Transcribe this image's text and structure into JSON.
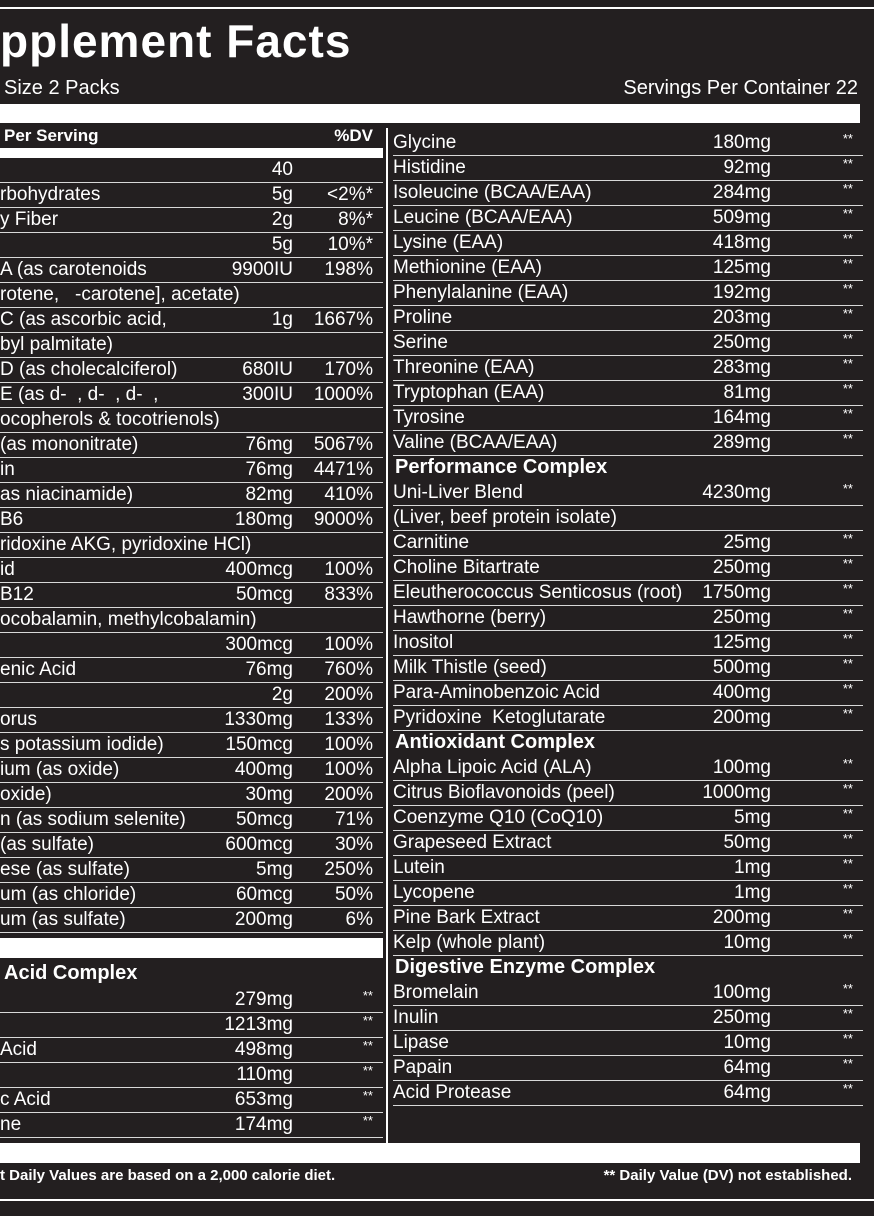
{
  "header": {
    "title": "pplement Facts",
    "serving_size": "Size 2 Packs",
    "servings_per_container": "Servings Per Container 22"
  },
  "left": {
    "header": {
      "label": "Per Serving",
      "dv": "%DV"
    },
    "rows": [
      {
        "amount": "40"
      },
      {
        "name": "rbohydrates",
        "amount": "5g",
        "dv": "<2%*"
      },
      {
        "name": "y Fiber",
        "amount": "2g",
        "dv": "8%*"
      },
      {
        "amount": "5g",
        "dv": "10%*"
      },
      {
        "name": "A (as carotenoids",
        "amount": "9900IU",
        "dv": "198%"
      },
      {
        "name": "rotene,   -carotene], acetate)"
      },
      {
        "name": "C (as ascorbic acid,",
        "amount": "1g",
        "dv": "1667%"
      },
      {
        "name": "byl palmitate)"
      },
      {
        "name": "D (as cholecalciferol)",
        "amount": "680IU",
        "dv": "170%"
      },
      {
        "name": "E (as d-  , d-  , d-  ,",
        "amount": "300IU",
        "dv": "1000%"
      },
      {
        "name": "ocopherols & tocotrienols)"
      },
      {
        "name": "(as mononitrate)",
        "amount": "76mg",
        "dv": "5067%"
      },
      {
        "name": "in",
        "amount": "76mg",
        "dv": "4471%"
      },
      {
        "name": "as niacinamide)",
        "amount": "82mg",
        "dv": "410%"
      },
      {
        "name": "B6",
        "amount": "180mg",
        "dv": "9000%"
      },
      {
        "name": "ridoxine AKG, pyridoxine HCl)"
      },
      {
        "name": "id",
        "amount": "400mcg",
        "dv": "100%"
      },
      {
        "name": "B12",
        "amount": "50mcg",
        "dv": "833%"
      },
      {
        "name": "ocobalamin, methylcobalamin)"
      },
      {
        "amount": "300mcg",
        "dv": "100%"
      },
      {
        "name": "enic Acid",
        "amount": "76mg",
        "dv": "760%"
      },
      {
        "amount": "2g",
        "dv": "200%"
      },
      {
        "name": "orus",
        "amount": "1330mg",
        "dv": "133%"
      },
      {
        "name": "s potassium iodide)",
        "amount": "150mcg",
        "dv": "100%"
      },
      {
        "name": "ium (as oxide)",
        "amount": "400mg",
        "dv": "100%"
      },
      {
        "name": "oxide)",
        "amount": "30mg",
        "dv": "200%"
      },
      {
        "name": "n (as sodium selenite)",
        "amount": "50mcg",
        "dv": "71%"
      },
      {
        "name": "(as sulfate)",
        "amount": "600mcg",
        "dv": "30%"
      },
      {
        "name": "ese (as sulfate)",
        "amount": "5mg",
        "dv": "250%"
      },
      {
        "name": "um (as chloride)",
        "amount": "60mcg",
        "dv": "50%"
      },
      {
        "name": "um (as sulfate)",
        "amount": "200mg",
        "dv": "6%"
      }
    ],
    "section": {
      "heading": "Acid Complex",
      "rows": [
        {
          "amount": "279mg",
          "dv": "**"
        },
        {
          "amount": "1213mg",
          "dv": "**"
        },
        {
          "name": "Acid",
          "amount": "498mg",
          "dv": "**"
        },
        {
          "amount": "110mg",
          "dv": "**"
        },
        {
          "name": "c Acid",
          "amount": "653mg",
          "dv": "**"
        },
        {
          "name": "ne",
          "amount": "174mg",
          "dv": "**"
        }
      ]
    }
  },
  "right": {
    "groups": [
      {
        "rows": [
          {
            "name": "Glycine",
            "amount": "180mg",
            "dv": "**"
          },
          {
            "name": "Histidine",
            "amount": "92mg",
            "dv": "**"
          },
          {
            "name": "Isoleucine (BCAA/EAA)",
            "amount": "284mg",
            "dv": "**"
          },
          {
            "name": "Leucine (BCAA/EAA)",
            "amount": "509mg",
            "dv": "**"
          },
          {
            "name": "Lysine (EAA)",
            "amount": "418mg",
            "dv": "**"
          },
          {
            "name": "Methionine (EAA)",
            "amount": "125mg",
            "dv": "**"
          },
          {
            "name": "Phenylalanine (EAA)",
            "amount": "192mg",
            "dv": "**"
          },
          {
            "name": "Proline",
            "amount": "203mg",
            "dv": "**"
          },
          {
            "name": "Serine",
            "amount": "250mg",
            "dv": "**"
          },
          {
            "name": "Threonine (EAA)",
            "amount": "283mg",
            "dv": "**"
          },
          {
            "name": "Tryptophan (EAA)",
            "amount": "81mg",
            "dv": "**"
          },
          {
            "name": "Tyrosine",
            "amount": "164mg",
            "dv": "**"
          },
          {
            "name": "Valine (BCAA/EAA)",
            "amount": "289mg",
            "dv": "**"
          }
        ]
      },
      {
        "heading": "Performance Complex",
        "rows": [
          {
            "name": "Uni-Liver Blend",
            "amount": "4230mg",
            "dv": "**"
          },
          {
            "name": "(Liver, beef protein isolate)"
          },
          {
            "name": "Carnitine",
            "amount": "25mg",
            "dv": "**"
          },
          {
            "name": "Choline Bitartrate",
            "amount": "250mg",
            "dv": "**"
          },
          {
            "name": "Eleutherococcus Senticosus (root)",
            "amount": "1750mg",
            "dv": "**"
          },
          {
            "name": "Hawthorne (berry)",
            "amount": "250mg",
            "dv": "**"
          },
          {
            "name": "Inositol",
            "amount": "125mg",
            "dv": "**"
          },
          {
            "name": "Milk Thistle (seed)",
            "amount": "500mg",
            "dv": "**"
          },
          {
            "name": "Para-Aminobenzoic Acid",
            "amount": "400mg",
            "dv": "**"
          },
          {
            "name": "Pyridoxine  Ketoglutarate",
            "amount": "200mg",
            "dv": "**"
          }
        ]
      },
      {
        "heading": "Antioxidant Complex",
        "rows": [
          {
            "name": "Alpha Lipoic Acid (ALA)",
            "amount": "100mg",
            "dv": "**"
          },
          {
            "name": "Citrus Bioflavonoids (peel)",
            "amount": "1000mg",
            "dv": "**"
          },
          {
            "name": "Coenzyme Q10 (CoQ10)",
            "amount": "5mg",
            "dv": "**"
          },
          {
            "name": "Grapeseed Extract",
            "amount": "50mg",
            "dv": "**"
          },
          {
            "name": "Lutein",
            "amount": "1mg",
            "dv": "**"
          },
          {
            "name": "Lycopene",
            "amount": "1mg",
            "dv": "**"
          },
          {
            "name": "Pine Bark Extract",
            "amount": "200mg",
            "dv": "**"
          },
          {
            "name": "Kelp (whole plant)",
            "amount": "10mg",
            "dv": "**"
          }
        ]
      },
      {
        "heading": "Digestive Enzyme Complex",
        "rows": [
          {
            "name": "Bromelain",
            "amount": "100mg",
            "dv": "**"
          },
          {
            "name": "Inulin",
            "amount": "250mg",
            "dv": "**"
          },
          {
            "name": "Lipase",
            "amount": "10mg",
            "dv": "**"
          },
          {
            "name": "Papain",
            "amount": "64mg",
            "dv": "**"
          },
          {
            "name": "Acid Protease",
            "amount": "64mg",
            "dv": "**"
          }
        ]
      }
    ]
  },
  "footer": {
    "left": "t Daily Values are based on a 2,000 calorie diet.",
    "right": "** Daily Value (DV) not established."
  }
}
